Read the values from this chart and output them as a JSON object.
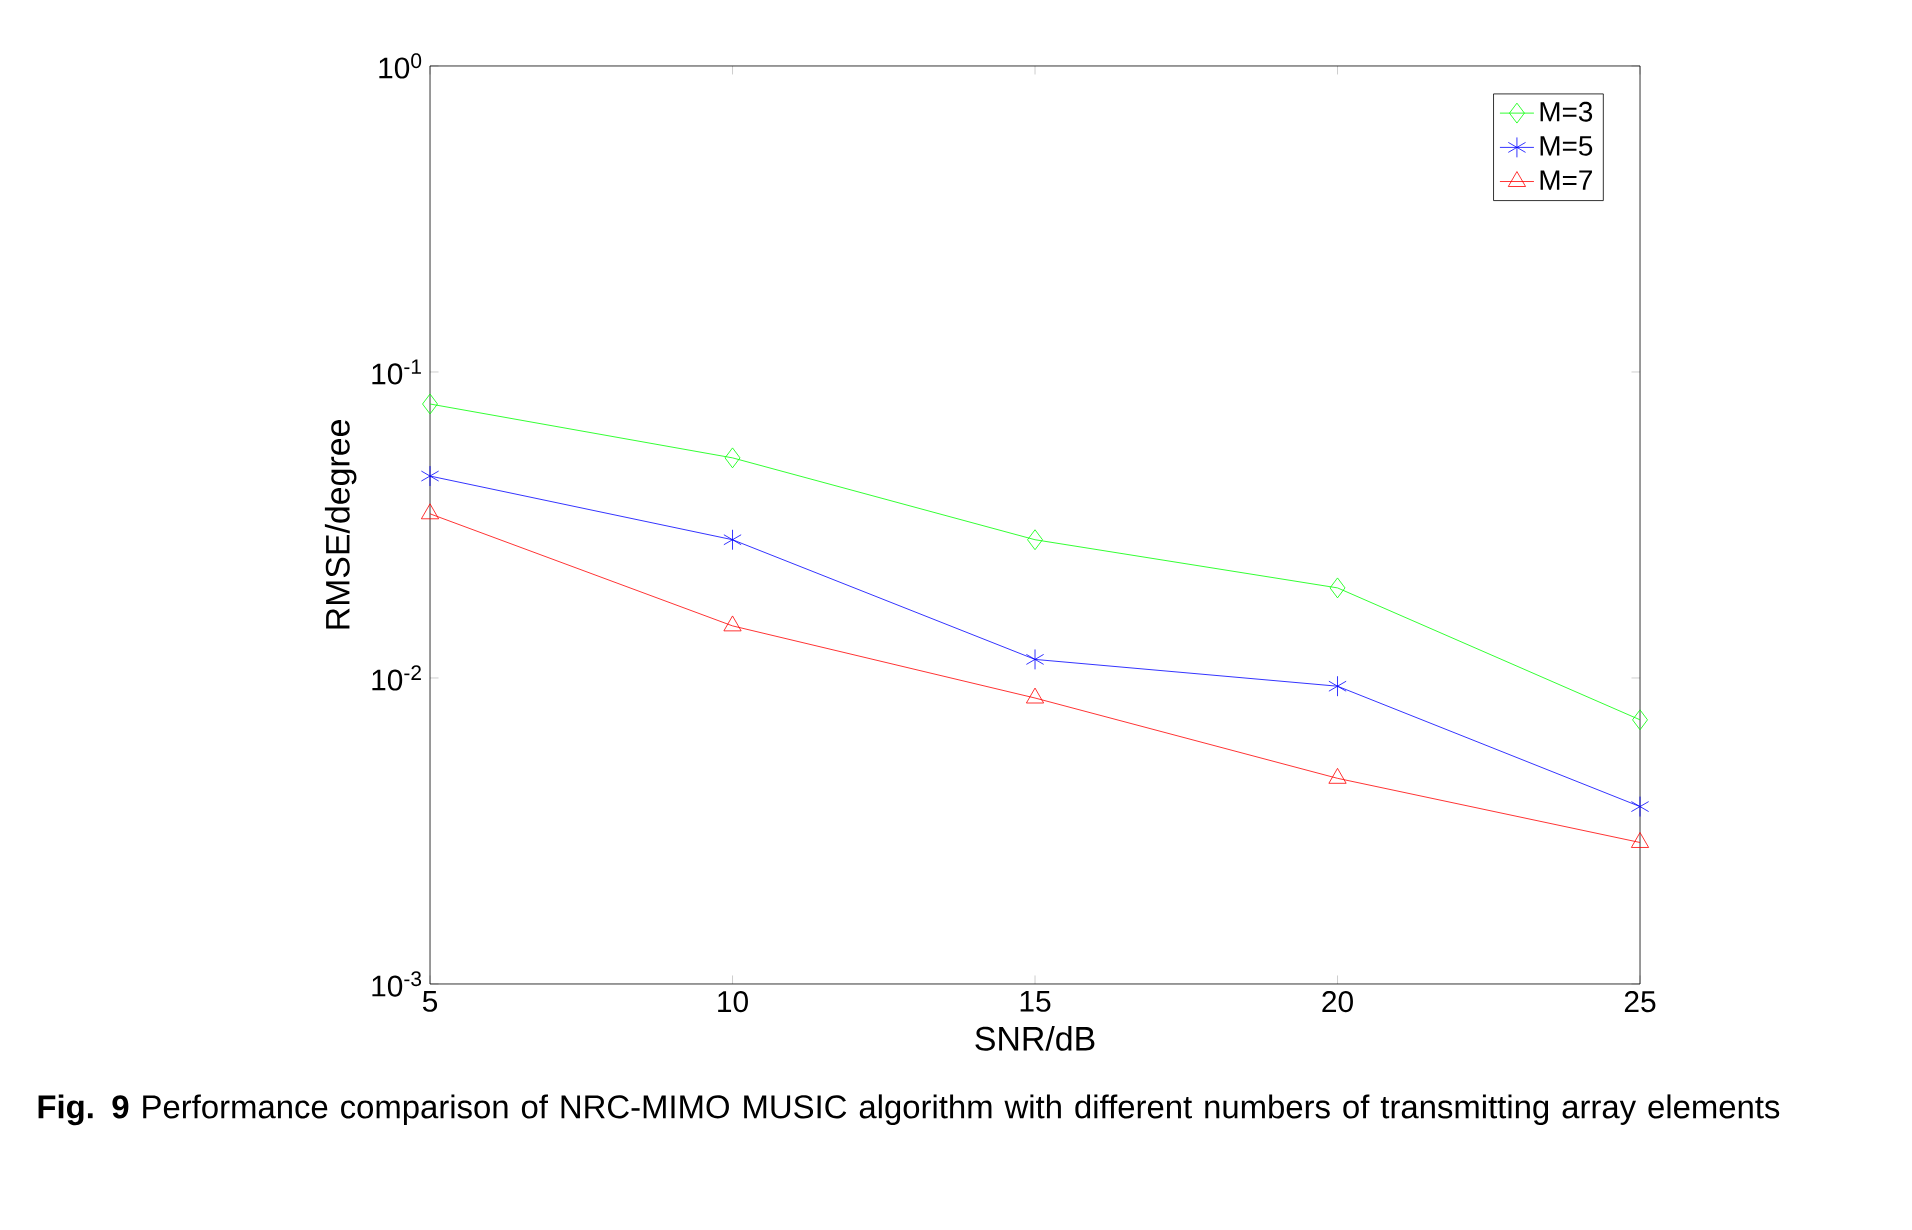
{
  "chart_data": {
    "type": "line",
    "xlabel": "SNR/dB",
    "ylabel": "RMSE/degree",
    "annotations": [
      "**Fig. 9** Performance comparison of NRC-MIMO MUSIC algorithm with different numbers of transmitting array elements"
    ],
    "x": [
      5,
      10,
      15,
      20,
      25
    ],
    "series": [
      {
        "name": "M=3",
        "color": "#00ff00",
        "marker": "diamond",
        "values": [
          0.0786,
          0.0524,
          0.0283,
          0.0197,
          0.0073
        ]
      },
      {
        "name": "M=5",
        "color": "#0000ff",
        "marker": "cross",
        "values": [
          0.0457,
          0.0283,
          0.0115,
          0.0094,
          0.0038
        ]
      },
      {
        "name": "M=7",
        "color": "#ff0000",
        "marker": "triangle",
        "values": [
          0.0344,
          0.0148,
          0.0086,
          0.0047,
          0.0029
        ]
      }
    ],
    "log": "y",
    "xlim": [
      5,
      25
    ],
    "ylim": [
      0.001,
      1
    ],
    "xticks": [
      5,
      10,
      15,
      20,
      25
    ],
    "yticks": [
      {
        "value": 0.001,
        "label": "10$^{-3}$"
      },
      {
        "value": 0.01,
        "label": "10$^{-2}$"
      },
      {
        "value": 0.1,
        "label": "10$^{-1}$"
      },
      {
        "value": 1,
        "label": "10$^{0}$"
      }
    ],
    "legend": "top right",
    "grid": false,
    "line_style": "solid"
  }
}
